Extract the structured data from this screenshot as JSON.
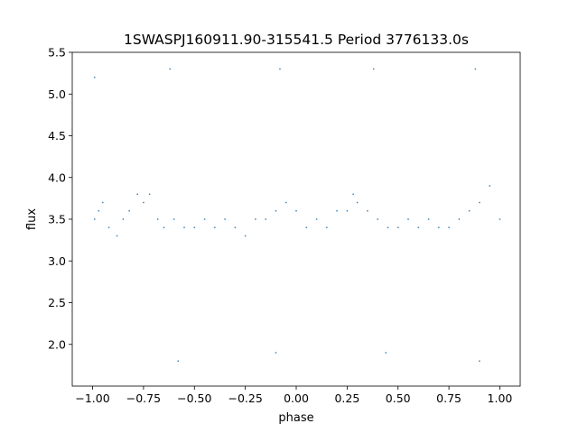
{
  "chart_data": {
    "type": "scatter",
    "title": "1SWASPJ160911.90-315541.5 Period 3776133.0s",
    "xlabel": "phase",
    "ylabel": "flux",
    "xlim": [
      -1.1,
      1.1
    ],
    "ylim": [
      1.5,
      5.5
    ],
    "xticks": [
      "−1.00",
      "−0.75",
      "−0.50",
      "−0.25",
      "0.00",
      "0.25",
      "0.50",
      "0.75",
      "1.00"
    ],
    "xtick_values": [
      -1.0,
      -0.75,
      -0.5,
      -0.25,
      0.0,
      0.25,
      0.5,
      0.75,
      1.0
    ],
    "yticks": [
      "2.0",
      "2.5",
      "3.0",
      "3.5",
      "4.0",
      "4.5",
      "5.0",
      "5.5"
    ],
    "ytick_values": [
      2.0,
      2.5,
      3.0,
      3.5,
      4.0,
      4.5,
      5.0,
      5.5
    ],
    "grid": false,
    "marker_color": "#1f77b4",
    "series": [
      {
        "points": [
          [
            -0.99,
            3.5
          ],
          [
            -0.97,
            3.6
          ],
          [
            -0.95,
            3.7
          ],
          [
            -0.92,
            3.4
          ],
          [
            -0.88,
            3.3
          ],
          [
            -0.85,
            3.5
          ],
          [
            -0.82,
            3.6
          ],
          [
            -0.78,
            3.8
          ],
          [
            -0.75,
            3.7
          ],
          [
            -0.72,
            3.8
          ],
          [
            -0.68,
            3.5
          ],
          [
            -0.65,
            3.4
          ],
          [
            -0.6,
            3.5
          ],
          [
            -0.55,
            3.4
          ],
          [
            -0.5,
            3.4
          ],
          [
            -0.45,
            3.5
          ],
          [
            -0.4,
            3.4
          ],
          [
            -0.35,
            3.5
          ],
          [
            -0.3,
            3.4
          ],
          [
            -0.25,
            3.3
          ],
          [
            -0.2,
            3.5
          ],
          [
            -0.15,
            3.5
          ],
          [
            -0.1,
            3.6
          ],
          [
            -0.05,
            3.7
          ],
          [
            0.0,
            3.6
          ],
          [
            0.05,
            3.4
          ],
          [
            0.1,
            3.5
          ],
          [
            0.15,
            3.4
          ],
          [
            0.2,
            3.6
          ],
          [
            0.25,
            3.6
          ],
          [
            0.28,
            3.8
          ],
          [
            0.3,
            3.7
          ],
          [
            0.35,
            3.6
          ],
          [
            0.4,
            3.5
          ],
          [
            0.45,
            3.4
          ],
          [
            0.5,
            3.4
          ],
          [
            0.55,
            3.5
          ],
          [
            0.6,
            3.4
          ],
          [
            0.65,
            3.5
          ],
          [
            0.7,
            3.4
          ],
          [
            0.75,
            3.4
          ],
          [
            0.8,
            3.5
          ],
          [
            0.85,
            3.6
          ],
          [
            0.9,
            3.7
          ],
          [
            0.95,
            3.9
          ],
          [
            1.0,
            3.5
          ],
          [
            -0.99,
            5.2
          ],
          [
            -0.62,
            5.3
          ],
          [
            -0.08,
            5.3
          ],
          [
            0.38,
            5.3
          ],
          [
            0.88,
            5.3
          ],
          [
            -0.58,
            1.8
          ],
          [
            -0.1,
            1.9
          ],
          [
            0.44,
            1.9
          ],
          [
            0.9,
            1.8
          ]
        ]
      }
    ]
  }
}
